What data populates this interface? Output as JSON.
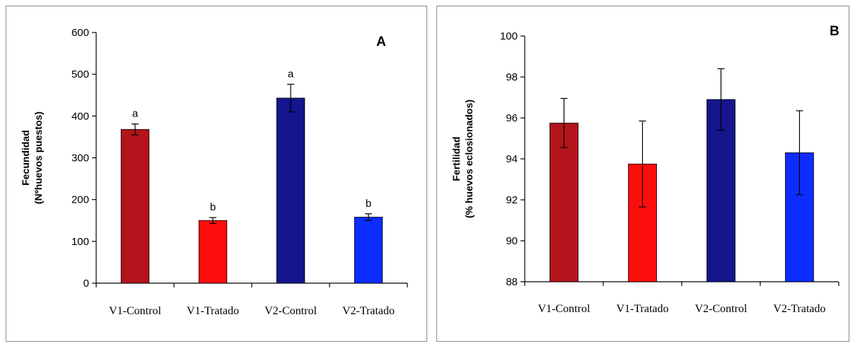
{
  "chart_data": [
    {
      "type": "bar",
      "panel_letter": "A",
      "categories": [
        "V1-Control",
        "V1-Tratado",
        "V2-Control",
        "V2-Tratado"
      ],
      "values": [
        368,
        150,
        443,
        158
      ],
      "errors": [
        13,
        7,
        33,
        8
      ],
      "significance_labels": [
        "a",
        "b",
        "a",
        "b"
      ],
      "ylabel_line1": "Fecundidad",
      "ylabel_line2": "(Nºhuevos puestos)",
      "ylim": [
        0,
        600
      ],
      "yticks": [
        0,
        100,
        200,
        300,
        400,
        500,
        600
      ],
      "colors": [
        "#b3141b",
        "#ff0d0d",
        "#15158e",
        "#0d2cff"
      ],
      "grid": false
    },
    {
      "type": "bar",
      "panel_letter": "B",
      "categories": [
        "V1-Control",
        "V1-Tratado",
        "V2-Control",
        "V2-Tratado"
      ],
      "values": [
        95.75,
        93.75,
        96.9,
        94.3
      ],
      "errors": [
        1.2,
        2.1,
        1.5,
        2.05
      ],
      "ylabel_line1": "Fertilidad",
      "ylabel_line2": "(% huevos eclosionados)",
      "ylim": [
        88,
        100
      ],
      "yticks": [
        88,
        90,
        92,
        94,
        96,
        98,
        100
      ],
      "colors": [
        "#b3141b",
        "#ff0d0d",
        "#15158e",
        "#0d2cff"
      ],
      "grid": false
    }
  ]
}
